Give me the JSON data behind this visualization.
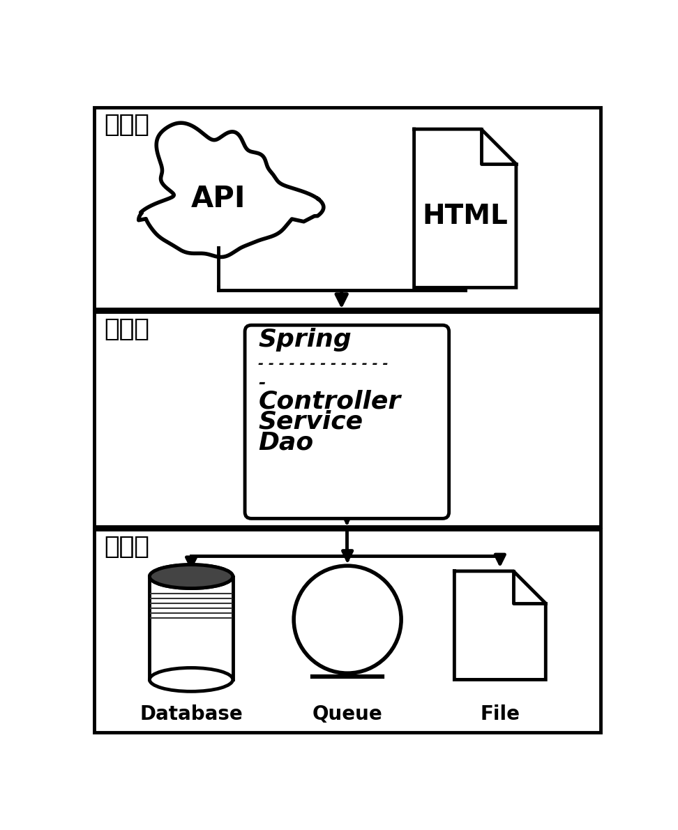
{
  "bg_color": "#ffffff",
  "line_color": "#000000",
  "layer1_label": "表现层",
  "layer2_label": "逻辑层",
  "layer3_label": "持久层",
  "api_label": "API",
  "html_label": "HTML",
  "db_label": "Database",
  "queue_label": "Queue",
  "file_label": "File",
  "lw": 3.5,
  "font_cn": "SimHei",
  "font_en": "DejaVu Sans"
}
